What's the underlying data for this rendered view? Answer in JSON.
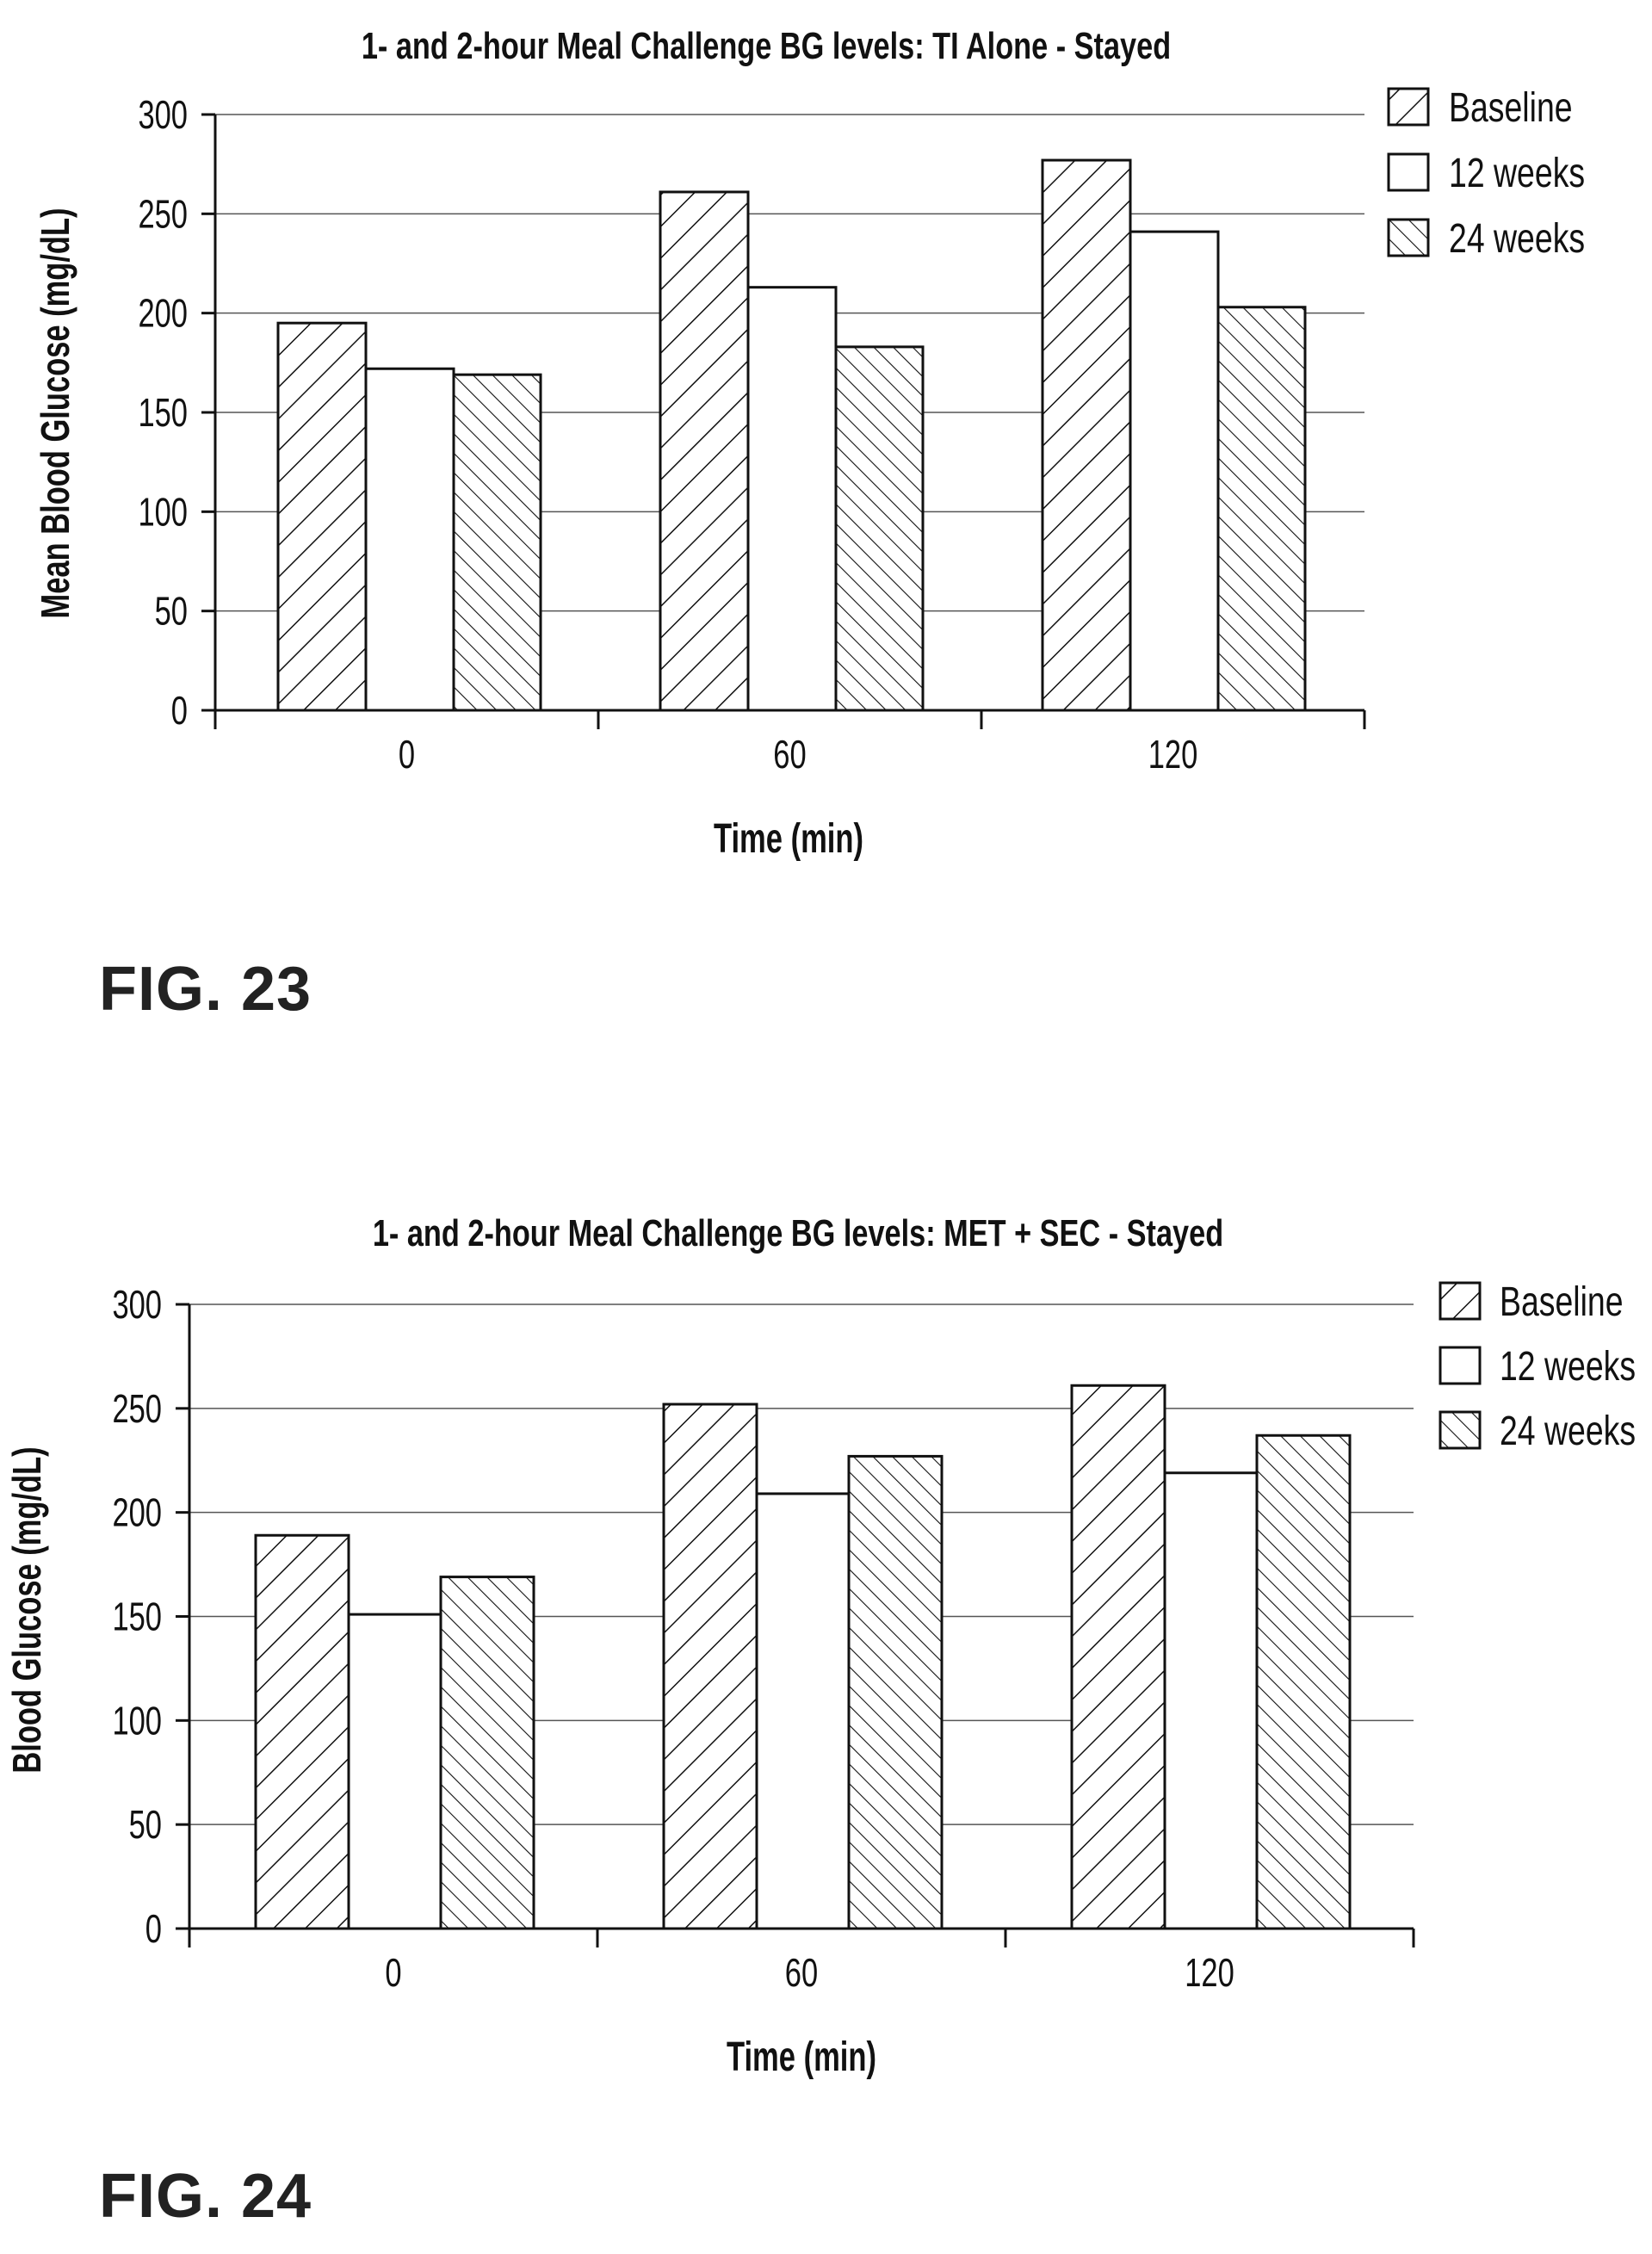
{
  "figures": [
    {
      "label": "FIG. 23",
      "chart_data": {
        "type": "bar",
        "title": "1- and 2-hour Meal Challenge BG levels: TI Alone - Stayed",
        "xlabel": "Time (min)",
        "ylabel": "Mean Blood Glucose (mg/dL)",
        "categories": [
          "0",
          "60",
          "120"
        ],
        "ylim": [
          0,
          300
        ],
        "yticks": [
          0,
          50,
          100,
          150,
          200,
          250,
          300
        ],
        "grid": true,
        "legend_position": "top-right",
        "series": [
          {
            "name": "Baseline",
            "pattern": "backslash-hatch",
            "values": [
              195,
              261,
              277
            ]
          },
          {
            "name": "12 weeks",
            "pattern": "none",
            "values": [
              172,
              213,
              241
            ]
          },
          {
            "name": "24 weeks",
            "pattern": "slash-hatch",
            "values": [
              169,
              183,
              203
            ]
          }
        ]
      }
    },
    {
      "label": "FIG. 24",
      "chart_data": {
        "type": "bar",
        "title": "1- and 2-hour Meal Challenge BG levels: MET + SEC - Stayed",
        "xlabel": "Time (min)",
        "ylabel": "Blood Glucose (mg/dL)",
        "categories": [
          "0",
          "60",
          "120"
        ],
        "ylim": [
          0,
          300
        ],
        "yticks": [
          0,
          50,
          100,
          150,
          200,
          250,
          300
        ],
        "grid": true,
        "legend_position": "top-right",
        "series": [
          {
            "name": "Baseline",
            "pattern": "backslash-hatch",
            "values": [
              189,
              252,
              261
            ]
          },
          {
            "name": "12 weeks",
            "pattern": "none",
            "values": [
              151,
              209,
              219
            ]
          },
          {
            "name": "24 weeks",
            "pattern": "slash-hatch",
            "values": [
              169,
              227,
              237
            ]
          }
        ]
      }
    }
  ],
  "colors": {
    "ink": "#111111",
    "grid": "#555555",
    "background": "#ffffff"
  }
}
